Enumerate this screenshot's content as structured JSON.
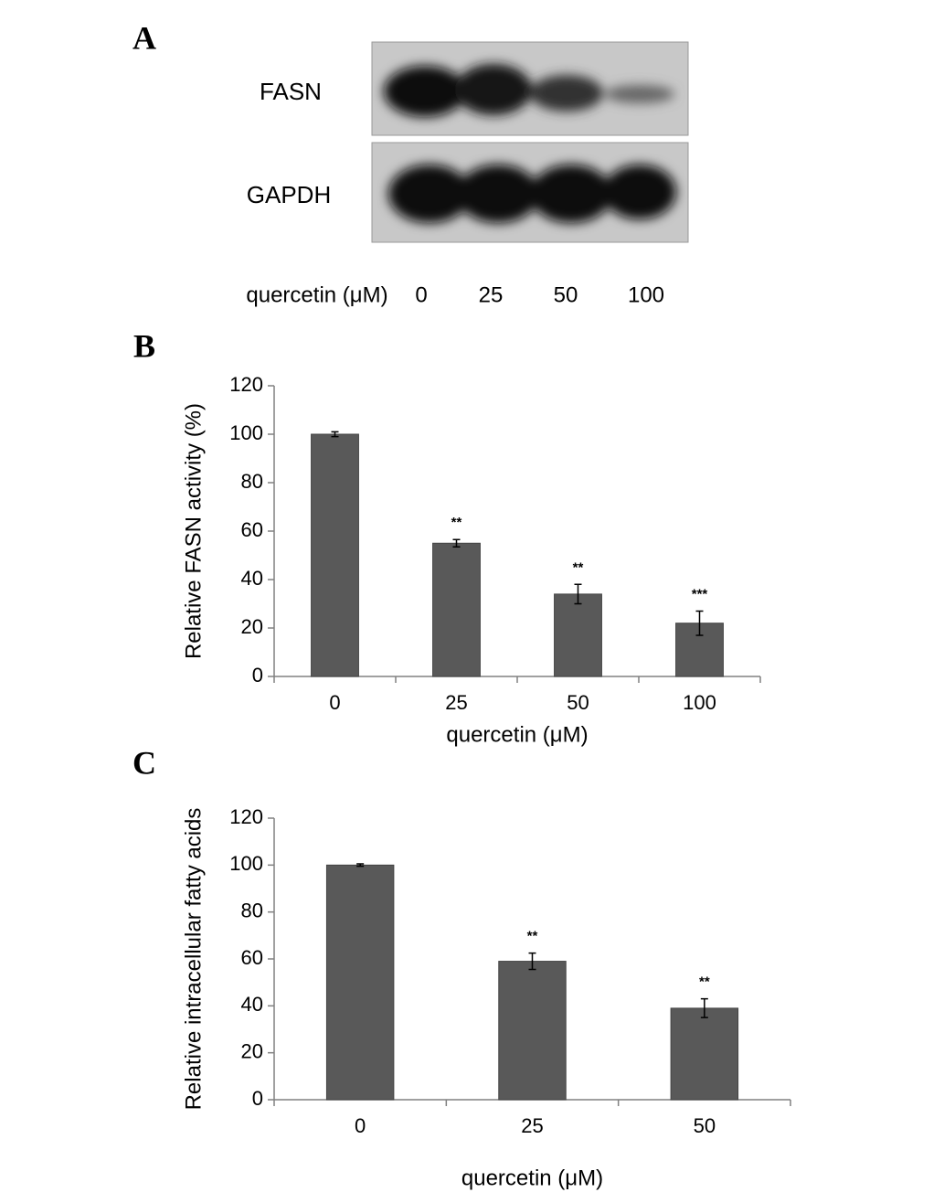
{
  "blot": {
    "panel": "A",
    "rows": [
      "FASN",
      "GAPDH"
    ],
    "treatment_label": "quercetin (μM)",
    "doses": [
      "0",
      "25",
      "50",
      "100"
    ]
  },
  "chart_data": [
    {
      "type": "bar",
      "panel": "B",
      "ylabel": "Relative FASN activity (%)",
      "xlabel": "quercetin (μM)",
      "categories": [
        "0",
        "25",
        "50",
        "100"
      ],
      "values": [
        100,
        55,
        34,
        22
      ],
      "errors": [
        1,
        1.5,
        4,
        5
      ],
      "significance": [
        null,
        "**",
        "**",
        "***"
      ],
      "color": "#595959",
      "ylim": [
        0,
        120
      ],
      "yticks": [
        0,
        20,
        40,
        60,
        80,
        100,
        120
      ]
    },
    {
      "type": "bar",
      "panel": "C",
      "ylabel": "Relative intracellular fatty acids",
      "xlabel": "quercetin (μM)",
      "categories": [
        "0",
        "25",
        "50"
      ],
      "values": [
        100,
        59,
        39
      ],
      "errors": [
        0.5,
        3.5,
        4
      ],
      "significance": [
        null,
        "**",
        "**"
      ],
      "color": "#595959",
      "ylim": [
        0,
        120
      ],
      "yticks": [
        0,
        20,
        40,
        60,
        80,
        100,
        120
      ]
    }
  ]
}
